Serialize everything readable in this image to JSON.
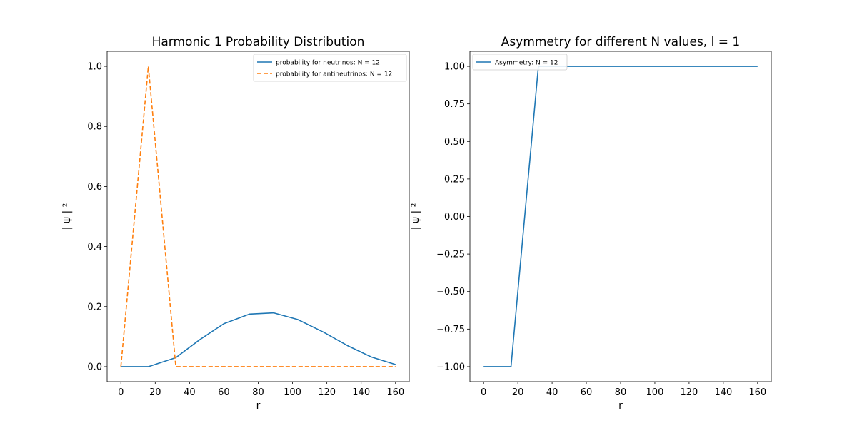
{
  "chart_data": [
    {
      "type": "line",
      "title": "Harmonic 1 Probability Distribution",
      "xlabel": "r",
      "ylabel": "| ψ | ²",
      "xlim": [
        -8,
        168
      ],
      "ylim": [
        -0.05,
        1.05
      ],
      "xticks": [
        0,
        20,
        40,
        60,
        80,
        100,
        120,
        140,
        160
      ],
      "yticks": [
        0.0,
        0.2,
        0.4,
        0.6,
        0.8,
        1.0
      ],
      "ytick_labels": [
        "0.0",
        "0.2",
        "0.4",
        "0.6",
        "0.8",
        "1.0"
      ],
      "grid": false,
      "legend_position": "top-right",
      "series": [
        {
          "name": "probability for neutrinos: N = 12",
          "color": "#1f77b4",
          "dash": "solid",
          "x": [
            0,
            16,
            32,
            46,
            60,
            75,
            89,
            103,
            118,
            132,
            146,
            160
          ],
          "y": [
            0.0,
            0.0,
            0.03,
            0.09,
            0.143,
            0.175,
            0.179,
            0.157,
            0.115,
            0.07,
            0.032,
            0.007
          ]
        },
        {
          "name": "probability for antineutrinos: N = 12",
          "color": "#ff7f0e",
          "dash": "dashed",
          "x": [
            0,
            16,
            32,
            46,
            60,
            75,
            89,
            103,
            118,
            132,
            146,
            160
          ],
          "y": [
            0.0,
            1.0,
            0.0,
            0.0,
            0.0,
            0.0,
            0.0,
            0.0,
            0.0,
            0.0,
            0.0,
            0.0
          ]
        }
      ]
    },
    {
      "type": "line",
      "title": "Asymmetry for different N values, l = 1",
      "xlabel": "r",
      "ylabel": "| ψ | ²",
      "xlim": [
        -8,
        168
      ],
      "ylim": [
        -1.1,
        1.1
      ],
      "xticks": [
        0,
        20,
        40,
        60,
        80,
        100,
        120,
        140,
        160
      ],
      "yticks": [
        -1.0,
        -0.75,
        -0.5,
        -0.25,
        0.0,
        0.25,
        0.5,
        0.75,
        1.0
      ],
      "ytick_labels": [
        "−1.00",
        "−0.75",
        "−0.50",
        "−0.25",
        "0.00",
        "0.25",
        "0.50",
        "0.75",
        "1.00"
      ],
      "grid": false,
      "legend_position": "top-left",
      "series": [
        {
          "name": "Asymmetry: N = 12",
          "color": "#1f77b4",
          "dash": "solid",
          "x": [
            0,
            16,
            32,
            46,
            60,
            75,
            89,
            103,
            118,
            132,
            146,
            160
          ],
          "y": [
            -1.0,
            -1.0,
            1.0,
            1.0,
            1.0,
            1.0,
            1.0,
            1.0,
            1.0,
            1.0,
            1.0,
            1.0
          ]
        }
      ]
    }
  ]
}
